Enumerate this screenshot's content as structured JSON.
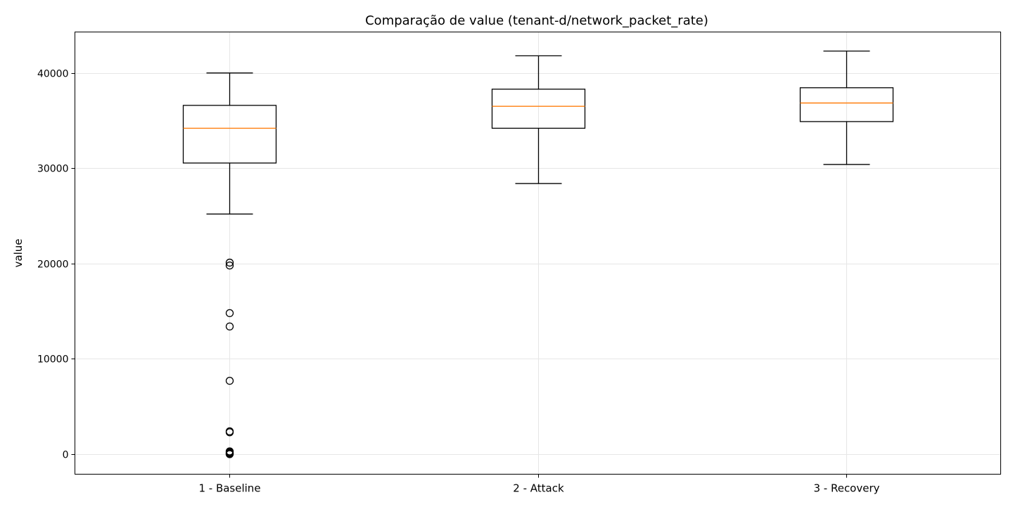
{
  "chart_data": {
    "type": "box",
    "title": "Comparação de value (tenant-d/network_packet_rate)",
    "xlabel": "",
    "ylabel": "value",
    "ylim": [
      -2100,
      44300
    ],
    "yticks": [
      0,
      10000,
      20000,
      30000,
      40000
    ],
    "grid": true,
    "median_color": "#ff7f0e",
    "categories": [
      "1 - Baseline",
      "2 - Attack",
      "3 - Recovery"
    ],
    "boxes": [
      {
        "label": "1 - Baseline",
        "whisker_low": 25200,
        "q1": 30550,
        "median": 34200,
        "q3": 36600,
        "whisker_high": 40000,
        "outliers": [
          20100,
          19800,
          14800,
          13400,
          7700,
          2400,
          2300,
          300,
          200,
          100,
          50,
          0
        ]
      },
      {
        "label": "2 - Attack",
        "whisker_low": 28400,
        "q1": 34200,
        "median": 36500,
        "q3": 38300,
        "whisker_high": 41800,
        "outliers": []
      },
      {
        "label": "3 - Recovery",
        "whisker_low": 30400,
        "q1": 34900,
        "median": 36850,
        "q3": 38450,
        "whisker_high": 42300,
        "outliers": []
      }
    ]
  }
}
